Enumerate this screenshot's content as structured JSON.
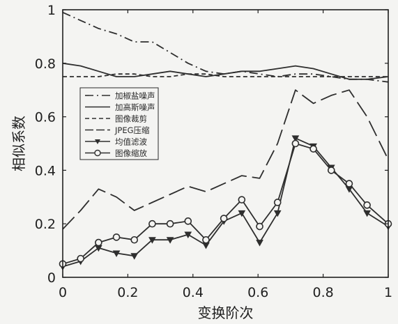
{
  "chart_data": {
    "type": "line",
    "title": "",
    "xlabel": "变换阶次",
    "ylabel": "相似系数",
    "xlim": [
      0,
      1
    ],
    "ylim": [
      0,
      1
    ],
    "xticks": [
      "0",
      "0.2",
      "0.4",
      "0.6",
      "0.8",
      "1"
    ],
    "yticks": [
      "0",
      "0.2",
      "0.4",
      "0.6",
      "0.8",
      "1"
    ],
    "grid": false,
    "legend": "upper-left",
    "x": [
      0,
      0.055,
      0.11,
      0.165,
      0.22,
      0.275,
      0.33,
      0.385,
      0.44,
      0.495,
      0.55,
      0.605,
      0.66,
      0.715,
      0.77,
      0.825,
      0.88,
      0.935,
      1.0
    ],
    "series": [
      {
        "name": "加椒盐噪声",
        "style": "dash-dot",
        "values": [
          0.99,
          0.96,
          0.93,
          0.91,
          0.88,
          0.88,
          0.84,
          0.8,
          0.77,
          0.76,
          0.77,
          0.76,
          0.75,
          0.76,
          0.76,
          0.75,
          0.74,
          0.74,
          0.73
        ]
      },
      {
        "name": "加高斯噪声",
        "style": "solid",
        "values": [
          0.8,
          0.79,
          0.77,
          0.75,
          0.75,
          0.76,
          0.77,
          0.76,
          0.75,
          0.76,
          0.77,
          0.77,
          0.78,
          0.79,
          0.78,
          0.76,
          0.74,
          0.74,
          0.75
        ]
      },
      {
        "name": "图像裁剪",
        "style": "dashed",
        "values": [
          0.75,
          0.75,
          0.75,
          0.76,
          0.76,
          0.75,
          0.75,
          0.76,
          0.76,
          0.75,
          0.75,
          0.75,
          0.75,
          0.75,
          0.75,
          0.75,
          0.75,
          0.75,
          0.75
        ]
      },
      {
        "name": "JPEG压缩",
        "style": "long-dash",
        "values": [
          0.18,
          0.25,
          0.33,
          0.3,
          0.25,
          0.28,
          0.31,
          0.34,
          0.32,
          0.35,
          0.38,
          0.37,
          0.5,
          0.7,
          0.65,
          0.68,
          0.7,
          0.6,
          0.44
        ]
      },
      {
        "name": "均值滤波",
        "style": "solid-triangle",
        "values": [
          0.04,
          0.06,
          0.11,
          0.09,
          0.08,
          0.14,
          0.14,
          0.16,
          0.12,
          0.21,
          0.24,
          0.13,
          0.24,
          0.52,
          0.49,
          0.41,
          0.33,
          0.24,
          0.19
        ]
      },
      {
        "name": "图像缩放",
        "style": "solid-circle",
        "values": [
          0.05,
          0.07,
          0.13,
          0.15,
          0.14,
          0.2,
          0.2,
          0.21,
          0.14,
          0.22,
          0.29,
          0.19,
          0.28,
          0.5,
          0.48,
          0.4,
          0.35,
          0.27,
          0.2
        ]
      }
    ]
  }
}
